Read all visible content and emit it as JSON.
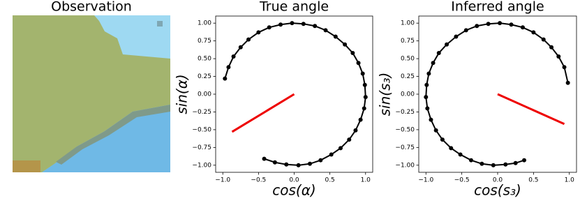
{
  "chart_data": [
    {
      "type": "image",
      "title": "Observation"
    },
    {
      "type": "line",
      "title": "True angle",
      "xlabel": "cos(α)",
      "ylabel": "sin(α)",
      "xlim": [
        -1.1,
        1.1
      ],
      "ylim": [
        -1.1,
        1.1
      ],
      "xticks": [
        {
          "value": -1,
          "label": "−1.0"
        },
        {
          "value": -0.5,
          "label": "−0.5"
        },
        {
          "value": 0,
          "label": "0.0"
        },
        0.5,
        {
          "value": 1,
          "label": "1.0"
        }
      ],
      "yticks": [
        {
          "value": -1,
          "label": "−1.00"
        },
        {
          "value": -0.75,
          "label": "−0.75"
        },
        {
          "value": -0.5,
          "label": "−0.50"
        },
        {
          "value": -0.25,
          "label": "−0.25"
        },
        {
          "value": 0,
          "label": "0.00"
        },
        0.25,
        {
          "value": 0.5,
          "label": "0.50"
        },
        0.75,
        {
          "value": 1,
          "label": "1.00"
        }
      ],
      "series": [
        {
          "color": "#000000",
          "markers": true,
          "x": [
            -0.97,
            -0.92,
            -0.85,
            -0.75,
            -0.64,
            -0.5,
            -0.35,
            -0.19,
            -0.03,
            0.13,
            0.29,
            0.44,
            0.58,
            0.71,
            0.82,
            0.9,
            0.96,
            0.99,
            1.0,
            0.98,
            0.93,
            0.86,
            0.77,
            0.65,
            0.52,
            0.37,
            0.22,
            0.06,
            -0.11,
            -0.27,
            -0.42
          ],
          "values": [
            0.22,
            0.38,
            0.53,
            0.66,
            0.77,
            0.87,
            0.94,
            0.98,
            1.0,
            0.99,
            0.96,
            0.9,
            0.81,
            0.7,
            0.58,
            0.44,
            0.29,
            0.13,
            -0.04,
            -0.2,
            -0.36,
            -0.51,
            -0.64,
            -0.76,
            -0.85,
            -0.93,
            -0.98,
            -1.0,
            -0.99,
            -0.96,
            -0.91
          ]
        },
        {
          "color": "#ee0000",
          "markers": false,
          "x": [
            0,
            -0.87
          ],
          "values": [
            0,
            -0.53
          ]
        }
      ]
    },
    {
      "type": "line",
      "title": "Inferred angle",
      "xlabel": "cos(s₃)",
      "ylabel": "sin(s₃)",
      "xlim": [
        -1.1,
        1.1
      ],
      "ylim": [
        -1.1,
        1.1
      ],
      "xticks": [
        {
          "value": -1,
          "label": "−1.0"
        },
        {
          "value": -0.5,
          "label": "−0.5"
        },
        {
          "value": 0,
          "label": "0.0"
        },
        0.5,
        {
          "value": 1,
          "label": "1.0"
        }
      ],
      "yticks": [
        {
          "value": -1,
          "label": "−1.00"
        },
        {
          "value": -0.75,
          "label": "−0.75"
        },
        {
          "value": -0.5,
          "label": "−0.50"
        },
        {
          "value": -0.25,
          "label": "−0.25"
        },
        {
          "value": 0,
          "label": "0.00"
        },
        0.25,
        {
          "value": 0.5,
          "label": "0.50"
        },
        0.75,
        {
          "value": 1,
          "label": "1.00"
        }
      ],
      "series": [
        {
          "color": "#000000",
          "markers": true,
          "x": [
            0.98,
            0.93,
            0.85,
            0.75,
            0.64,
            0.5,
            0.35,
            0.19,
            0.03,
            -0.13,
            -0.29,
            -0.44,
            -0.58,
            -0.71,
            -0.82,
            -0.9,
            -0.96,
            -0.99,
            -1.0,
            -0.98,
            -0.93,
            -0.86,
            -0.77,
            -0.65,
            -0.52,
            -0.37,
            -0.22,
            -0.06,
            0.11,
            0.25,
            0.37
          ],
          "values": [
            0.16,
            0.38,
            0.53,
            0.66,
            0.77,
            0.87,
            0.94,
            0.98,
            1.0,
            0.99,
            0.96,
            0.9,
            0.81,
            0.7,
            0.58,
            0.44,
            0.29,
            0.13,
            -0.04,
            -0.2,
            -0.36,
            -0.51,
            -0.64,
            -0.76,
            -0.85,
            -0.93,
            -0.98,
            -1.0,
            -0.99,
            -0.97,
            -0.93
          ]
        },
        {
          "color": "#ee0000",
          "markers": false,
          "x": [
            0,
            0.93
          ],
          "values": [
            0,
            -0.42
          ]
        }
      ]
    }
  ]
}
